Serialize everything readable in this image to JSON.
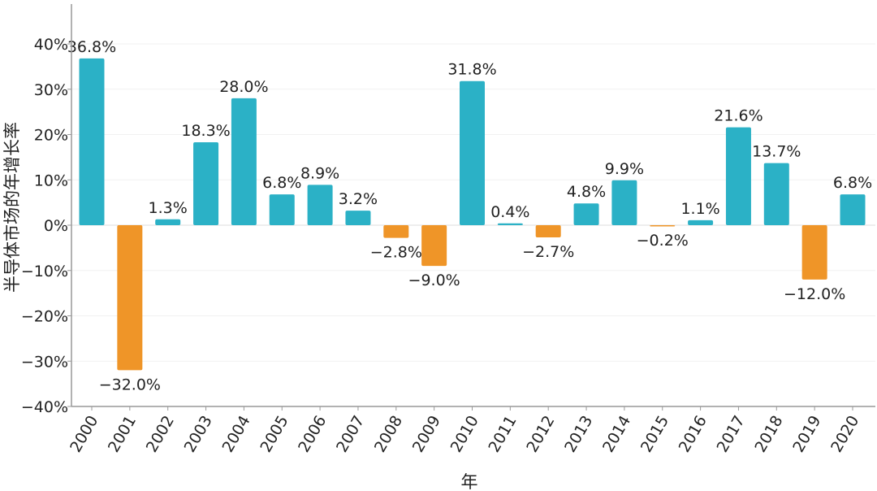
{
  "chart_data": {
    "type": "bar",
    "title": "",
    "xlabel": "年",
    "ylabel": "半导体市场的年增长率",
    "ylim": [
      -40,
      40
    ],
    "yticks": [
      40,
      30,
      20,
      10,
      0,
      -10,
      -20,
      -30,
      -40
    ],
    "ytick_labels": [
      "40%",
      "30%",
      "20%",
      "10%",
      "0%",
      "−10%",
      "−20%",
      "−30%",
      "−40%"
    ],
    "grid": true,
    "categories": [
      "2000",
      "2001",
      "2002",
      "2003",
      "2004",
      "2005",
      "2006",
      "2007",
      "2008",
      "2009",
      "2010",
      "2011",
      "2012",
      "2013",
      "2014",
      "2015",
      "2016",
      "2017",
      "2018",
      "2019",
      "2020"
    ],
    "values": [
      36.8,
      -32.0,
      1.3,
      18.3,
      28.0,
      6.8,
      8.9,
      3.2,
      -2.8,
      -9.0,
      31.8,
      0.4,
      -2.7,
      4.8,
      9.9,
      -0.2,
      1.1,
      21.6,
      13.7,
      -12.0,
      6.8
    ],
    "data_labels": [
      "36.8%",
      "−32.0%",
      "1.3%",
      "18.3%",
      "28.0%",
      "6.8%",
      "8.9%",
      "3.2%",
      "−2.8%",
      "−9.0%",
      "31.8%",
      "0.4%",
      "−2.7%",
      "4.8%",
      "9.9%",
      "−0.2%",
      "1.1%",
      "21.6%",
      "13.7%",
      "−12.0%",
      "6.8%"
    ],
    "colors": {
      "positive": "#2bb1c6",
      "negative": "#ef9528"
    }
  }
}
